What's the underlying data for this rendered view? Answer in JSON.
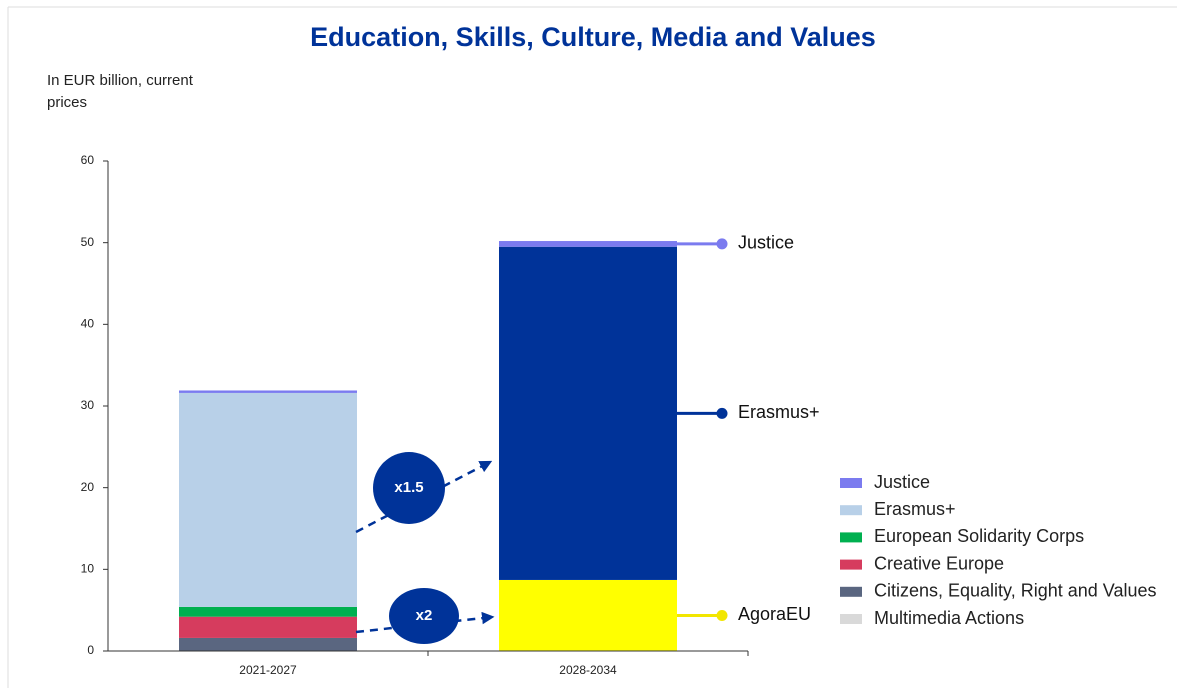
{
  "chart_data": {
    "type": "stacked_bar",
    "title": "Education, Skills, Culture, Media and Values",
    "subtitle": "In EUR billion, current prices",
    "categories": [
      "2021-2027",
      "2028-2034"
    ],
    "series": [
      {
        "name": "Justice",
        "color": "#7b7bef",
        "values": [
          0.3,
          0.7
        ]
      },
      {
        "name": "Erasmus+",
        "color": "#b8d0e8",
        "colors": [
          "#b8d0e8",
          "#003399"
        ],
        "values": [
          26.2,
          40.8
        ]
      },
      {
        "name": "European Solidarity Corps",
        "color": "#00b050",
        "values": [
          1.2,
          null
        ]
      },
      {
        "name": "Creative Europe",
        "color": "#d63c5e",
        "values": [
          2.6,
          null
        ]
      },
      {
        "name": "Citizens, Equality, Right and Values",
        "color": "#5a6680",
        "values": [
          1.6,
          null
        ]
      },
      {
        "name": "Multimedia Actions",
        "color": "#d9d9d9",
        "values": [
          null,
          null
        ]
      },
      {
        "name": "AgoraEU",
        "color": "#ffff00",
        "in_legend": false,
        "values": [
          null,
          8.7
        ]
      }
    ],
    "end_labels": [
      {
        "text": "Justice",
        "series": 0,
        "color": "#7b7bef"
      },
      {
        "text": "Erasmus+",
        "series": 1,
        "color": "#003399"
      },
      {
        "text": "AgoraEU",
        "series": 6,
        "color": "#f2e600"
      }
    ],
    "annotations": [
      {
        "text": "x1.5"
      },
      {
        "text": "x2"
      }
    ],
    "ylim": [
      0,
      60
    ],
    "yticks": [
      0,
      10,
      20,
      30,
      40,
      50,
      60
    ]
  }
}
